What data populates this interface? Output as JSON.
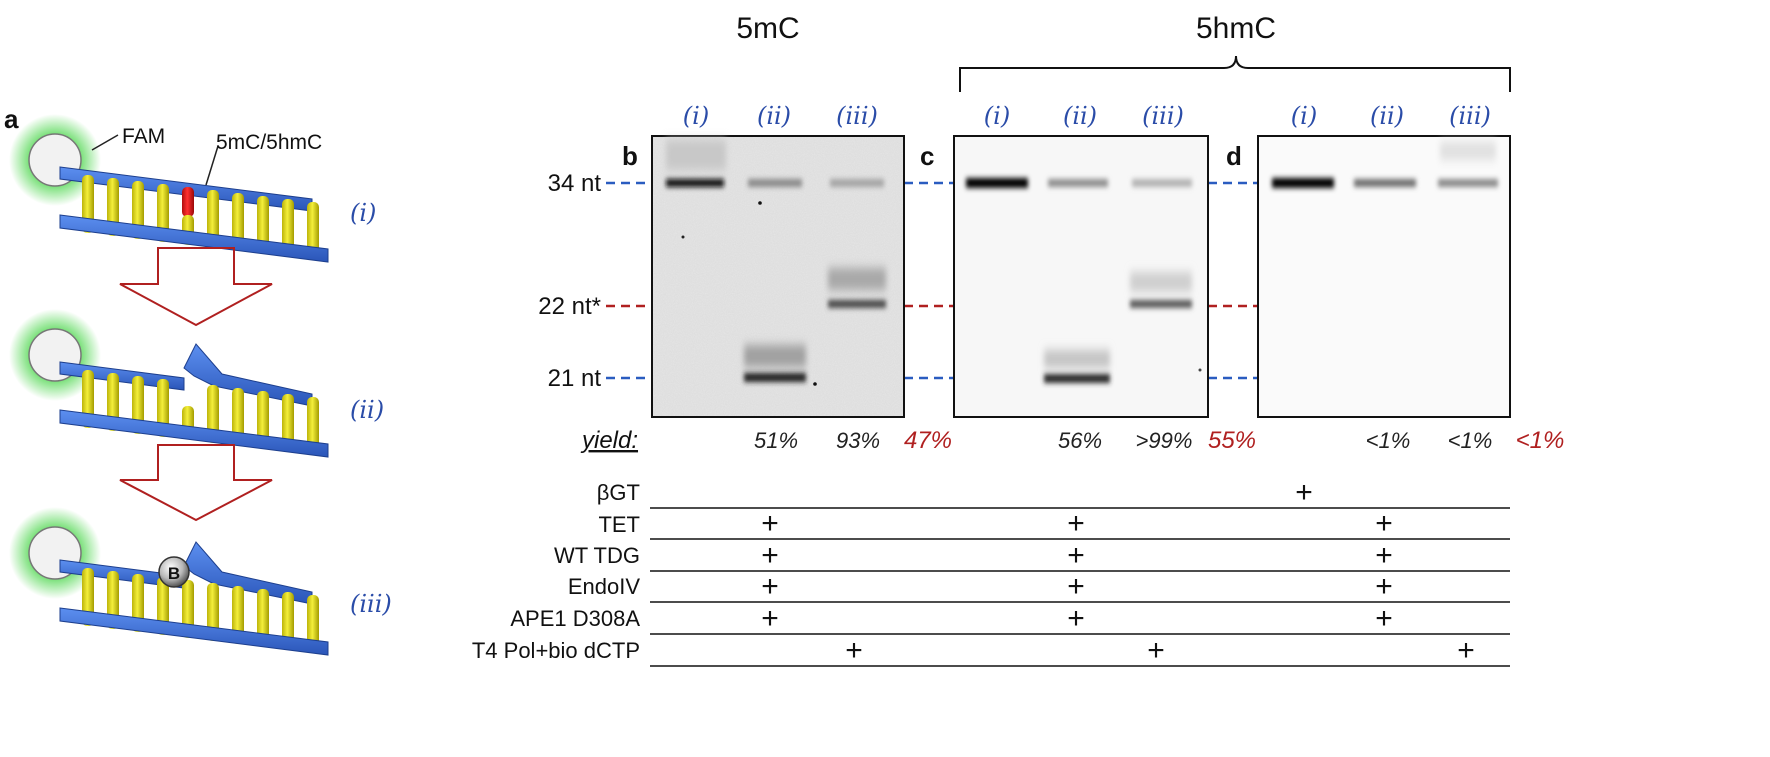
{
  "headers": {
    "mc": "5mC",
    "hmc": "5hmC"
  },
  "panels": {
    "a": "a",
    "b": "b",
    "c": "c",
    "d": "d"
  },
  "schematic": {
    "fam_label": "FAM",
    "mod_label": "5mC/5hmC",
    "stage_labels": [
      "(i)",
      "(ii)",
      "(iii)"
    ],
    "biotin_label": "B"
  },
  "lanes": [
    "(i)",
    "(ii)",
    "(iii)",
    "(i)",
    "(ii)",
    "(iii)",
    "(i)",
    "(ii)",
    "(iii)"
  ],
  "size_markers": [
    "34 nt",
    "22 nt*",
    "21 nt"
  ],
  "yield": {
    "label": "yield:",
    "values": [
      "51%",
      "93%",
      "56%",
      ">99%",
      "<1%",
      "<1%"
    ],
    "overall": [
      "47%",
      "55%",
      "<1%"
    ]
  },
  "conditions": {
    "rows": [
      "βGT",
      "TET",
      "WT TDG",
      "EndoIV",
      "APE1 D308A",
      "T4 Pol+bio dCTP"
    ],
    "plus_mark": "+"
  },
  "colors": {
    "blue_strand": "#3a6fd8",
    "base_yellow": "#e8e21a",
    "mod_red": "#e01818",
    "fam_green": "#3cd23c",
    "lane_blue": "#2a4ca8",
    "arrow_red": "#b02020",
    "marker_blue": "#2a5cc0",
    "marker_red": "#b02020"
  }
}
